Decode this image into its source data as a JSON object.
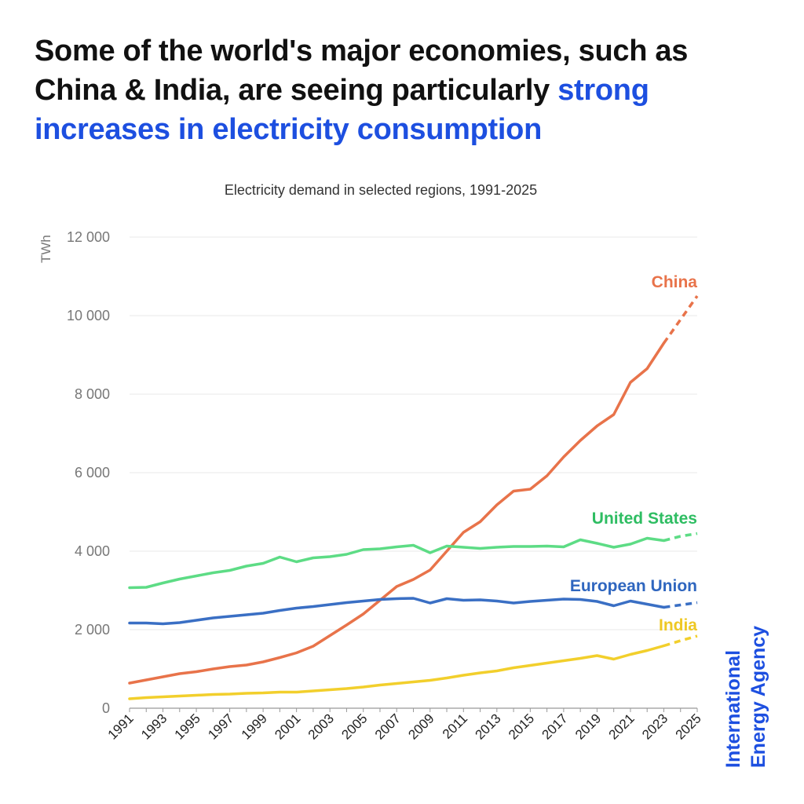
{
  "headline": {
    "text_plain": "Some of the world's major economies, such as China & India, are seeing particularly ",
    "text_highlight": "strong increases in electricity consumption",
    "highlight_color": "#1d4fe0"
  },
  "brand": {
    "line1": "International",
    "line2": "Energy Agency"
  },
  "chart_data": {
    "type": "line",
    "title": "Electricity demand in selected regions, 1991-2025",
    "xlabel": "",
    "ylabel": "TWh",
    "ylim": [
      0,
      12000
    ],
    "yticks": [
      0,
      2000,
      4000,
      6000,
      8000,
      10000,
      12000
    ],
    "ytick_labels": [
      "0",
      "2 000",
      "4 000",
      "6 000",
      "8 000",
      "10 000",
      "12 000"
    ],
    "x": [
      1991,
      1992,
      1993,
      1994,
      1995,
      1996,
      1997,
      1998,
      1999,
      2000,
      2001,
      2002,
      2003,
      2004,
      2005,
      2006,
      2007,
      2008,
      2009,
      2010,
      2011,
      2012,
      2013,
      2014,
      2015,
      2016,
      2017,
      2018,
      2019,
      2020,
      2021,
      2022,
      2023,
      2024,
      2025
    ],
    "xticks": [
      1991,
      1993,
      1995,
      1997,
      1999,
      2001,
      2003,
      2005,
      2007,
      2009,
      2011,
      2013,
      2015,
      2017,
      2019,
      2021,
      2023,
      2025
    ],
    "xlim": [
      1991,
      2025
    ],
    "grid": "horizontal",
    "forecast_from": 2023,
    "series": [
      {
        "name": "China",
        "color": "#e8734a",
        "values": [
          640,
          720,
          800,
          880,
          930,
          1000,
          1060,
          1100,
          1180,
          1290,
          1410,
          1580,
          1850,
          2120,
          2400,
          2750,
          3100,
          3280,
          3520,
          4000,
          4480,
          4750,
          5180,
          5530,
          5580,
          5920,
          6400,
          6820,
          7190,
          7480,
          8300,
          8650,
          9300,
          9900,
          10500
        ]
      },
      {
        "name": "United States",
        "color": "#5ddc85",
        "values": [
          3070,
          3080,
          3190,
          3290,
          3370,
          3450,
          3510,
          3620,
          3690,
          3850,
          3730,
          3830,
          3860,
          3920,
          4040,
          4060,
          4110,
          4150,
          3960,
          4130,
          4100,
          4070,
          4100,
          4120,
          4120,
          4130,
          4110,
          4290,
          4200,
          4100,
          4180,
          4330,
          4270,
          4380,
          4450
        ]
      },
      {
        "name": "European Union",
        "color": "#3a6fc4",
        "values": [
          2170,
          2170,
          2150,
          2180,
          2240,
          2300,
          2340,
          2380,
          2420,
          2490,
          2550,
          2590,
          2640,
          2690,
          2730,
          2770,
          2790,
          2800,
          2680,
          2790,
          2750,
          2760,
          2730,
          2680,
          2720,
          2750,
          2780,
          2770,
          2720,
          2610,
          2730,
          2650,
          2570,
          2630,
          2690
        ]
      },
      {
        "name": "India",
        "color": "#f2cf2c",
        "values": [
          240,
          270,
          290,
          310,
          330,
          350,
          360,
          380,
          390,
          410,
          410,
          440,
          470,
          500,
          540,
          590,
          630,
          670,
          710,
          770,
          840,
          900,
          950,
          1030,
          1090,
          1150,
          1210,
          1270,
          1340,
          1250,
          1370,
          1470,
          1590,
          1720,
          1840
        ]
      }
    ]
  }
}
